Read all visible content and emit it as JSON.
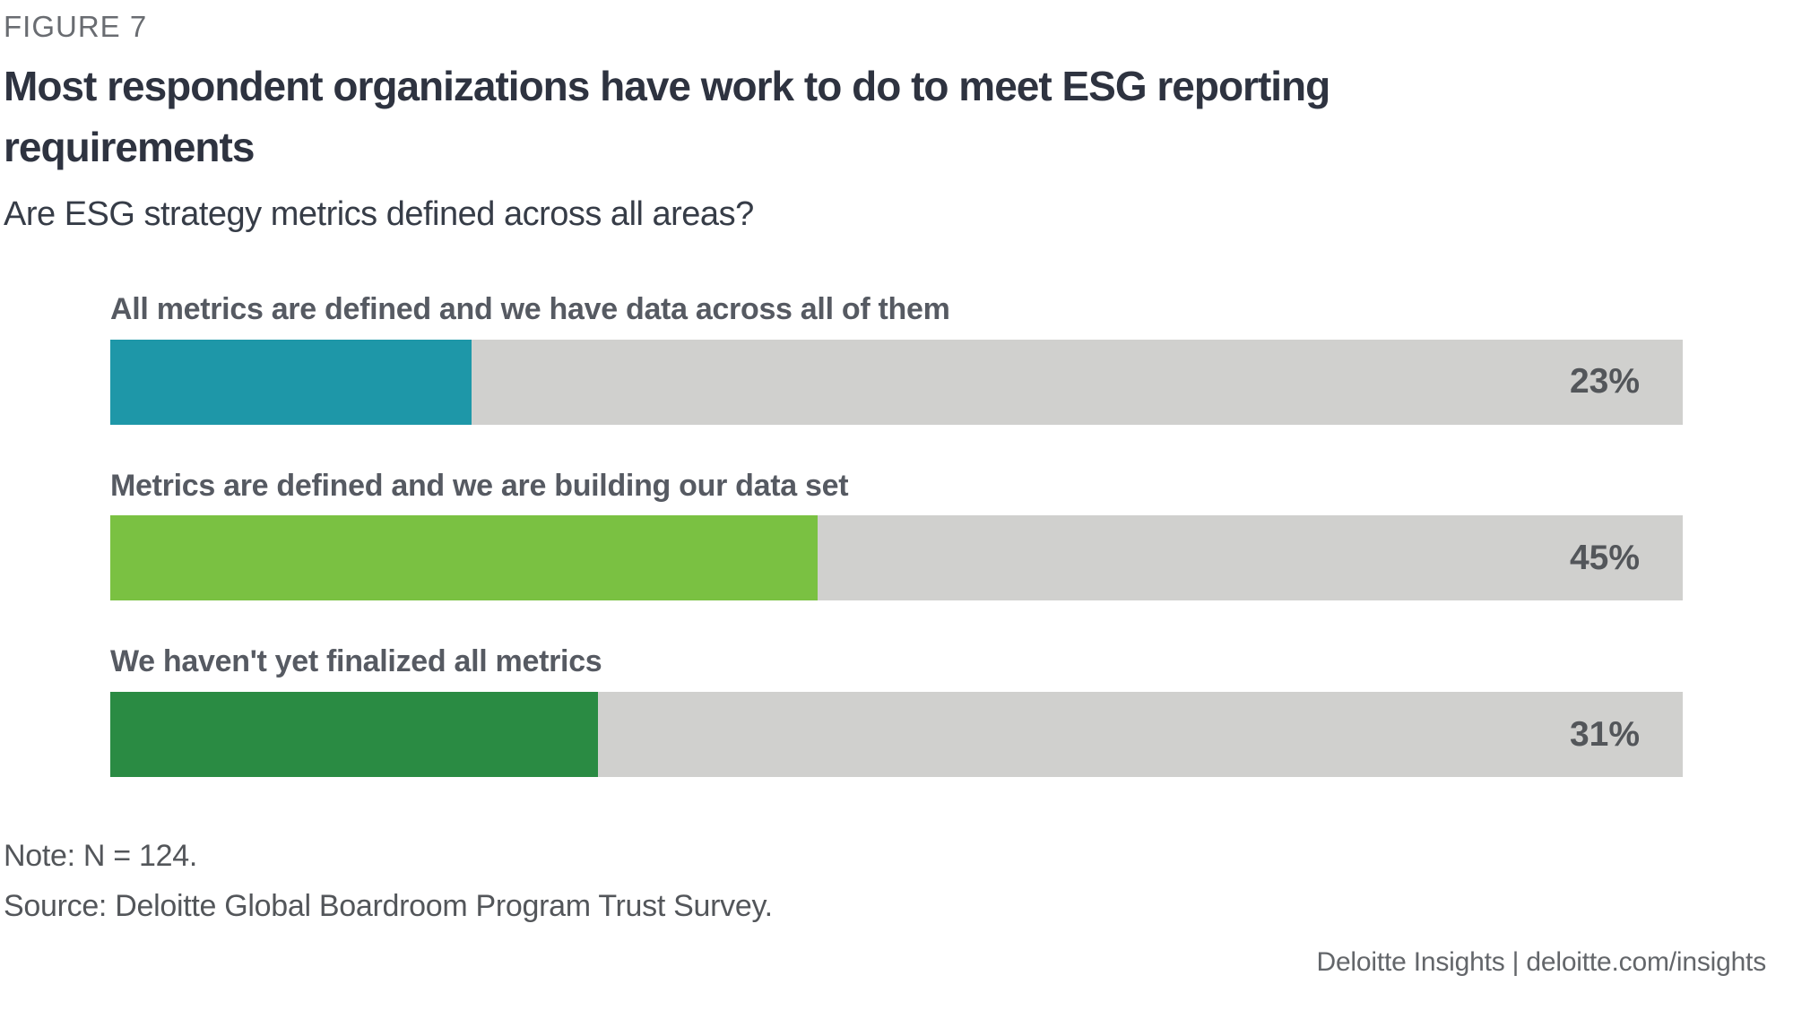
{
  "header": {
    "figure_label": "FIGURE 7",
    "title": "Most respondent organizations have work to do to meet ESG reporting requirements",
    "subtitle": "Are ESG strategy metrics defined across all areas?"
  },
  "chart_data": {
    "type": "bar",
    "orientation": "horizontal",
    "categories": [
      "All metrics are defined and we have data across all of them",
      "Metrics are defined and we are building our data set",
      "We haven't yet finalized all metrics"
    ],
    "values": [
      23,
      45,
      31
    ],
    "unit": "%",
    "value_labels": [
      "23%",
      "45%",
      "31%"
    ],
    "xlim": [
      0,
      100
    ],
    "grid": false,
    "legend": false,
    "bar_colors": [
      "#1e97a8",
      "#7ac142",
      "#2a8b43"
    ],
    "track_color": "#d0d0ce",
    "value_label_color": "#53565a"
  },
  "footnotes": {
    "note": "Note: N = 124.",
    "source": "Source: Deloitte Global Boardroom Program Trust Survey."
  },
  "footer": {
    "attribution": "Deloitte Insights | deloitte.com/insights"
  }
}
